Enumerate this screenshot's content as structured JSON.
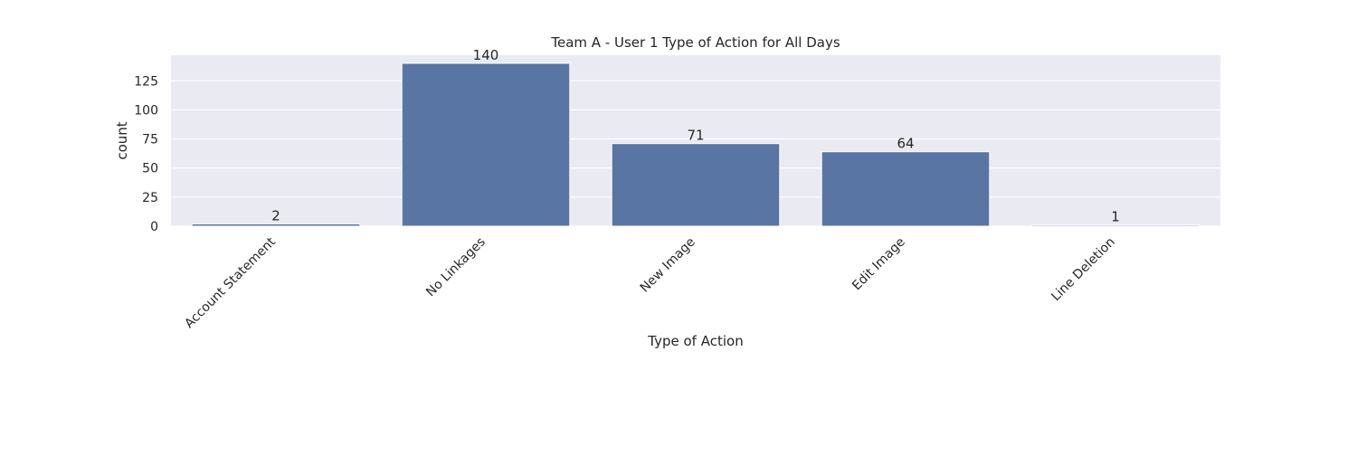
{
  "chart_data": {
    "type": "bar",
    "title": "Team A - User 1 Type of Action for All Days",
    "xlabel": "Type of Action",
    "ylabel": "count",
    "categories": [
      "Account Statement",
      "No Linkages",
      "New Image",
      "Edit Image",
      "Line Deletion"
    ],
    "values": [
      2,
      140,
      71,
      64,
      1
    ],
    "data_labels": [
      "2",
      "140",
      "71",
      "64",
      "1"
    ],
    "yticks": [
      0,
      25,
      50,
      75,
      100,
      125
    ],
    "ytick_labels": [
      "0",
      "25",
      "50",
      "75",
      "100",
      "125"
    ],
    "ylim": [
      0,
      147
    ],
    "grid": true,
    "colors": {
      "bar": "#5975a4",
      "plot_background": "#eaeaf2",
      "grid": "#ffffff"
    }
  }
}
